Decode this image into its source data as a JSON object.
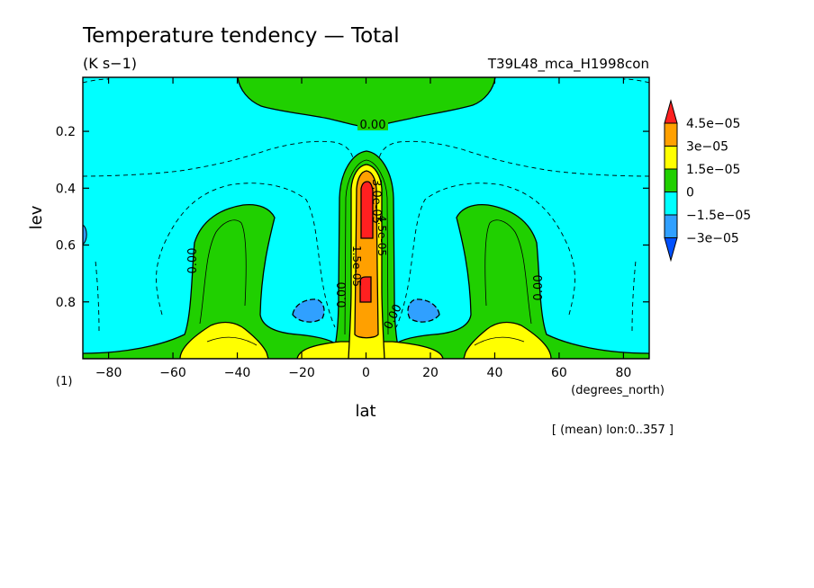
{
  "chart_data": {
    "type": "heatmap",
    "title": "Temperature tendency — Total",
    "units": "(K s−1)",
    "run_label": "T39L48_mca_H1998con",
    "xlabel": "lat",
    "x_units": "(degrees_north)",
    "ylabel": "lev",
    "y_units": "(1)",
    "footnote": "[ (mean) lon:0..357 ]",
    "xlim": [
      -88,
      88
    ],
    "ylim": [
      1.0,
      0.01
    ],
    "x_ticks": [
      -80,
      -60,
      -40,
      -20,
      0,
      20,
      40,
      60,
      80
    ],
    "x_tick_labels": [
      "−80",
      "−60",
      "−40",
      "−20",
      "0",
      "20",
      "40",
      "60",
      "80"
    ],
    "y_ticks": [
      0.2,
      0.4,
      0.6,
      0.8
    ],
    "y_tick_labels": [
      "0.2",
      "0.4",
      "0.6",
      "0.8"
    ],
    "colorbar": {
      "labels": [
        "4.5e−05",
        "3e−05",
        "1.5e−05",
        "0",
        "−1.5e−05",
        "−3e−05"
      ],
      "levels": [
        4.5e-05,
        3e-05,
        1.5e-05,
        0,
        -1.5e-05,
        -3e-05
      ],
      "bins": [
        {
          "range": "> 4.5e-05",
          "color": "#ff2020"
        },
        {
          "range": "3e-05 to 4.5e-05",
          "color": "#ffa000"
        },
        {
          "range": "1.5e-05 to 3e-05",
          "color": "#ffff00"
        },
        {
          "range": "0 to 1.5e-05",
          "color": "#20d000"
        },
        {
          "range": "-1.5e-05 to 0",
          "color": "#00ffff"
        },
        {
          "range": "-3e-05 to -1.5e-05",
          "color": "#30a0ff"
        },
        {
          "range": "< -3e-05",
          "color": "#0050ff"
        }
      ]
    },
    "contour_labels": [
      "0.00",
      "0.00",
      "0.00",
      "0.00",
      "0.00",
      "3.0e-05",
      "1.5e-05",
      "4.5e-05"
    ],
    "background_color": "#00ffff"
  }
}
